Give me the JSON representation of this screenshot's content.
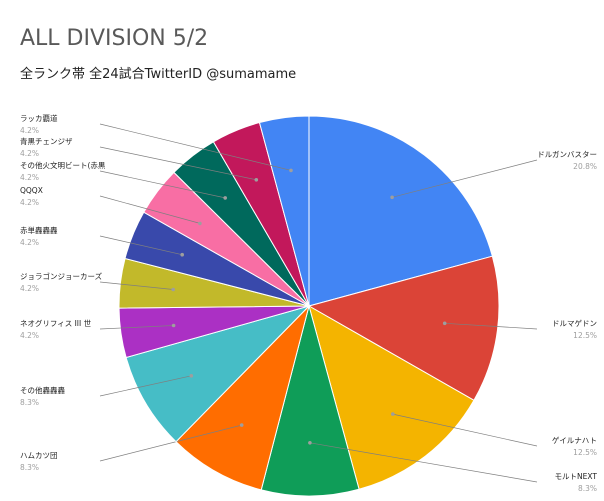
{
  "chart_data": {
    "type": "pie",
    "title": "ALL DIVISION 5/2",
    "subtitle": "全ランク帯 全24試合TwitterID @sumamame",
    "slices": [
      {
        "label": "ドルガンバスター",
        "percent_label": "20.8%",
        "value": 20.8,
        "color": "#4285f4"
      },
      {
        "label": "ドルマゲドン",
        "percent_label": "12.5%",
        "value": 12.5,
        "color": "#db4437"
      },
      {
        "label": "ゲイルナハト",
        "percent_label": "12.5%",
        "value": 12.5,
        "color": "#f4b400"
      },
      {
        "label": "モルトNEXT",
        "percent_label": "8.3%",
        "value": 8.3,
        "color": "#0f9d58"
      },
      {
        "label": "ハムカツ団",
        "percent_label": "8.3%",
        "value": 8.3,
        "color": "#ff6d00"
      },
      {
        "label": "その他轟轟轟",
        "percent_label": "8.3%",
        "value": 8.3,
        "color": "#46bdc6"
      },
      {
        "label": "ネオグリフィス III 世",
        "percent_label": "4.2%",
        "value": 4.2,
        "color": "#ab30c4"
      },
      {
        "label": "ジョラゴンジョーカーズ",
        "percent_label": "4.2%",
        "value": 4.2,
        "color": "#c2b92a"
      },
      {
        "label": "赤単轟轟轟",
        "percent_label": "4.2%",
        "value": 4.2,
        "color": "#3949ab"
      },
      {
        "label": "QQQX",
        "percent_label": "4.2%",
        "value": 4.2,
        "color": "#f86ea4"
      },
      {
        "label": "その他火文明ビート(赤黒",
        "percent_label": "4.2%",
        "value": 4.2,
        "color": "#00695c"
      },
      {
        "label": "青黒チェンジザ",
        "percent_label": "4.2%",
        "value": 4.2,
        "color": "#c2185b"
      },
      {
        "label": "ラッカ覇道",
        "percent_label": "4.2%",
        "value": 4.2,
        "color": "#4285f4"
      }
    ],
    "legend_placement": "outside labels with leader lines"
  }
}
